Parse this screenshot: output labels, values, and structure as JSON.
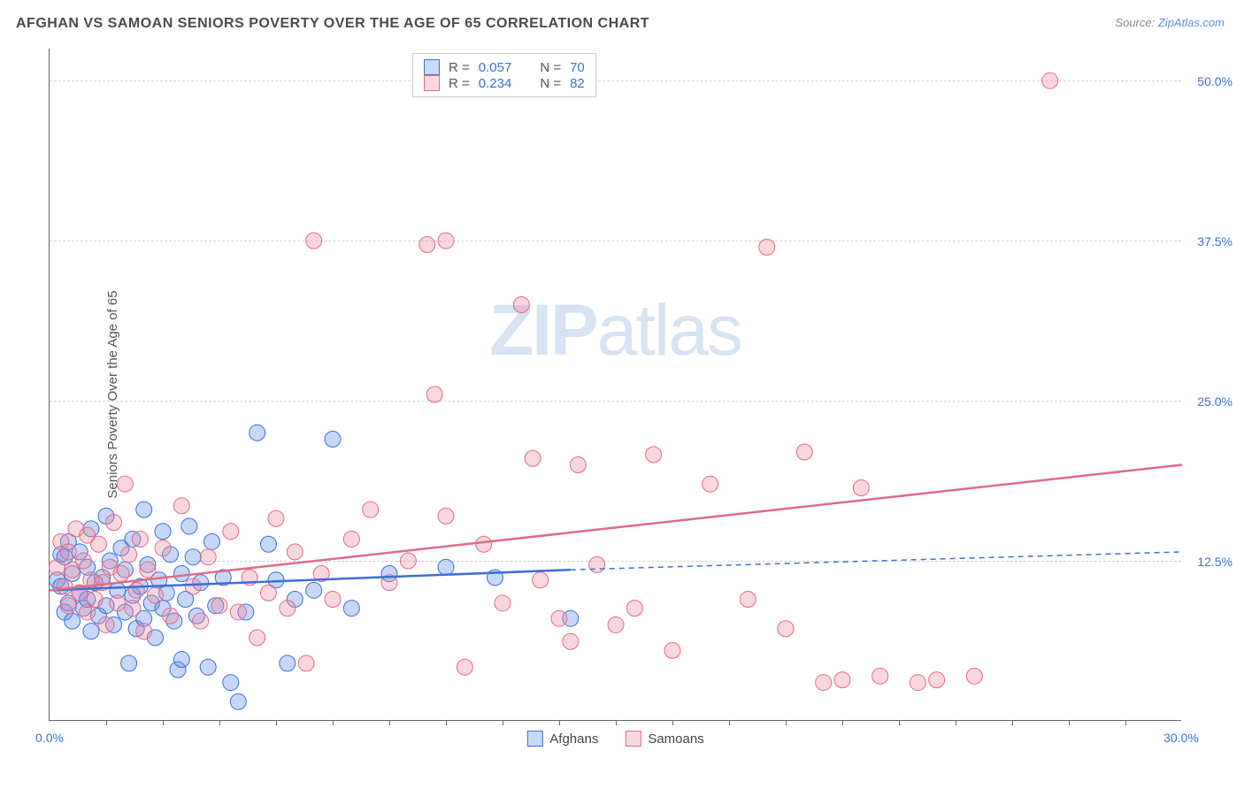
{
  "title": "AFGHAN VS SAMOAN SENIORS POVERTY OVER THE AGE OF 65 CORRELATION CHART",
  "source_label": "Source:",
  "source_name": "ZipAtlas.com",
  "y_axis_label": "Seniors Poverty Over the Age of 65",
  "watermark_bold": "ZIP",
  "watermark_rest": "atlas",
  "chart": {
    "type": "scatter",
    "background_color": "#ffffff",
    "grid_color": "#d0d0d0",
    "axis_color": "#666666",
    "label_color": "#3b6fd6",
    "xlim": [
      0,
      30
    ],
    "ylim": [
      0,
      52.5
    ],
    "x_ticks": [
      0,
      30
    ],
    "x_tick_labels": [
      "0.0%",
      "30.0%"
    ],
    "x_minor_ticks": [
      1.5,
      3,
      4.5,
      6,
      7.5,
      9,
      10.5,
      12,
      13.5,
      15,
      16.5,
      18,
      19.5,
      21,
      22.5,
      24,
      25.5,
      27,
      28.5
    ],
    "y_ticks": [
      12.5,
      25.0,
      37.5,
      50.0
    ],
    "y_tick_labels": [
      "12.5%",
      "25.0%",
      "37.5%",
      "50.0%"
    ],
    "marker_radius": 9,
    "marker_fill_opacity": 0.35,
    "line_width": 2.5,
    "series": [
      {
        "name": "Afghans",
        "color": "#5b8def",
        "stroke": "#3b6fd6",
        "r_value": "0.057",
        "n_value": "70",
        "trend_solid": {
          "x1": 0,
          "y1": 10.2,
          "x2": 13.8,
          "y2": 11.8
        },
        "trend_dashed": {
          "x1": 13.8,
          "y1": 11.8,
          "x2": 30,
          "y2": 13.2
        },
        "points": [
          [
            0.2,
            11
          ],
          [
            0.3,
            10.5
          ],
          [
            0.3,
            13
          ],
          [
            0.4,
            8.5
          ],
          [
            0.4,
            12.8
          ],
          [
            0.5,
            14
          ],
          [
            0.5,
            9.2
          ],
          [
            0.6,
            11.5
          ],
          [
            0.6,
            7.8
          ],
          [
            0.8,
            10
          ],
          [
            0.8,
            13.2
          ],
          [
            0.9,
            8.8
          ],
          [
            1.0,
            9.5
          ],
          [
            1.0,
            12
          ],
          [
            1.1,
            7
          ],
          [
            1.1,
            15
          ],
          [
            1.2,
            10.8
          ],
          [
            1.3,
            8.2
          ],
          [
            1.4,
            11.2
          ],
          [
            1.5,
            16
          ],
          [
            1.5,
            9
          ],
          [
            1.6,
            12.5
          ],
          [
            1.7,
            7.5
          ],
          [
            1.8,
            10.2
          ],
          [
            1.9,
            13.5
          ],
          [
            2.0,
            8.5
          ],
          [
            2.0,
            11.8
          ],
          [
            2.1,
            4.5
          ],
          [
            2.2,
            9.8
          ],
          [
            2.2,
            14.2
          ],
          [
            2.3,
            7.2
          ],
          [
            2.4,
            10.5
          ],
          [
            2.5,
            16.5
          ],
          [
            2.5,
            8
          ],
          [
            2.6,
            12.2
          ],
          [
            2.7,
            9.2
          ],
          [
            2.8,
            6.5
          ],
          [
            2.9,
            11
          ],
          [
            3.0,
            14.8
          ],
          [
            3.0,
            8.8
          ],
          [
            3.1,
            10
          ],
          [
            3.2,
            13
          ],
          [
            3.3,
            7.8
          ],
          [
            3.4,
            4
          ],
          [
            3.5,
            4.8
          ],
          [
            3.5,
            11.5
          ],
          [
            3.6,
            9.5
          ],
          [
            3.7,
            15.2
          ],
          [
            3.8,
            12.8
          ],
          [
            3.9,
            8.2
          ],
          [
            4.0,
            10.8
          ],
          [
            4.2,
            4.2
          ],
          [
            4.3,
            14
          ],
          [
            4.4,
            9
          ],
          [
            4.6,
            11.2
          ],
          [
            4.8,
            3
          ],
          [
            5.0,
            1.5
          ],
          [
            5.2,
            8.5
          ],
          [
            5.5,
            22.5
          ],
          [
            5.8,
            13.8
          ],
          [
            6.0,
            11
          ],
          [
            6.3,
            4.5
          ],
          [
            6.5,
            9.5
          ],
          [
            7.0,
            10.2
          ],
          [
            7.5,
            22
          ],
          [
            8.0,
            8.8
          ],
          [
            9.0,
            11.5
          ],
          [
            10.5,
            12
          ],
          [
            11.8,
            11.2
          ],
          [
            13.8,
            8
          ]
        ]
      },
      {
        "name": "Samoans",
        "color": "#f08ca0",
        "stroke": "#e06b85",
        "r_value": "0.234",
        "n_value": "82",
        "trend_solid": {
          "x1": 0,
          "y1": 10.2,
          "x2": 30,
          "y2": 20
        },
        "trend_dashed": null,
        "points": [
          [
            0.2,
            12
          ],
          [
            0.3,
            14
          ],
          [
            0.4,
            10.5
          ],
          [
            0.5,
            13.2
          ],
          [
            0.5,
            9
          ],
          [
            0.6,
            11.8
          ],
          [
            0.7,
            15
          ],
          [
            0.8,
            10
          ],
          [
            0.9,
            12.5
          ],
          [
            1.0,
            8.5
          ],
          [
            1.0,
            14.5
          ],
          [
            1.1,
            11
          ],
          [
            1.2,
            9.5
          ],
          [
            1.3,
            13.8
          ],
          [
            1.4,
            10.8
          ],
          [
            1.5,
            7.5
          ],
          [
            1.6,
            12
          ],
          [
            1.7,
            15.5
          ],
          [
            1.8,
            9.2
          ],
          [
            1.9,
            11.5
          ],
          [
            2.0,
            18.5
          ],
          [
            2.1,
            13
          ],
          [
            2.2,
            8.8
          ],
          [
            2.3,
            10.2
          ],
          [
            2.4,
            14.2
          ],
          [
            2.5,
            7
          ],
          [
            2.6,
            11.8
          ],
          [
            2.8,
            9.8
          ],
          [
            3.0,
            13.5
          ],
          [
            3.2,
            8.2
          ],
          [
            3.5,
            16.8
          ],
          [
            3.8,
            10.5
          ],
          [
            4.0,
            7.8
          ],
          [
            4.2,
            12.8
          ],
          [
            4.5,
            9
          ],
          [
            4.8,
            14.8
          ],
          [
            5.0,
            8.5
          ],
          [
            5.3,
            11.2
          ],
          [
            5.5,
            6.5
          ],
          [
            5.8,
            10
          ],
          [
            6.0,
            15.8
          ],
          [
            6.3,
            8.8
          ],
          [
            6.5,
            13.2
          ],
          [
            6.8,
            4.5
          ],
          [
            7.0,
            37.5
          ],
          [
            7.2,
            11.5
          ],
          [
            7.5,
            9.5
          ],
          [
            8.0,
            14.2
          ],
          [
            8.5,
            16.5
          ],
          [
            9.0,
            10.8
          ],
          [
            9.5,
            12.5
          ],
          [
            10.0,
            37.2
          ],
          [
            10.2,
            25.5
          ],
          [
            10.5,
            37.5
          ],
          [
            10.5,
            16
          ],
          [
            11.0,
            4.2
          ],
          [
            11.5,
            13.8
          ],
          [
            12.0,
            9.2
          ],
          [
            12.5,
            32.5
          ],
          [
            12.8,
            20.5
          ],
          [
            13.0,
            11
          ],
          [
            13.5,
            8
          ],
          [
            13.8,
            6.2
          ],
          [
            14.0,
            20
          ],
          [
            14.5,
            12.2
          ],
          [
            15.0,
            7.5
          ],
          [
            15.5,
            8.8
          ],
          [
            16.0,
            20.8
          ],
          [
            16.5,
            5.5
          ],
          [
            17.5,
            18.5
          ],
          [
            18.5,
            9.5
          ],
          [
            19.0,
            37
          ],
          [
            19.5,
            7.2
          ],
          [
            20.0,
            21
          ],
          [
            20.5,
            3
          ],
          [
            21.0,
            3.2
          ],
          [
            21.5,
            18.2
          ],
          [
            22.0,
            3.5
          ],
          [
            23.0,
            3
          ],
          [
            23.5,
            3.2
          ],
          [
            24.5,
            3.5
          ],
          [
            26.5,
            50
          ]
        ]
      }
    ],
    "stats_legend_labels": {
      "r": "R =",
      "n": "N ="
    }
  }
}
